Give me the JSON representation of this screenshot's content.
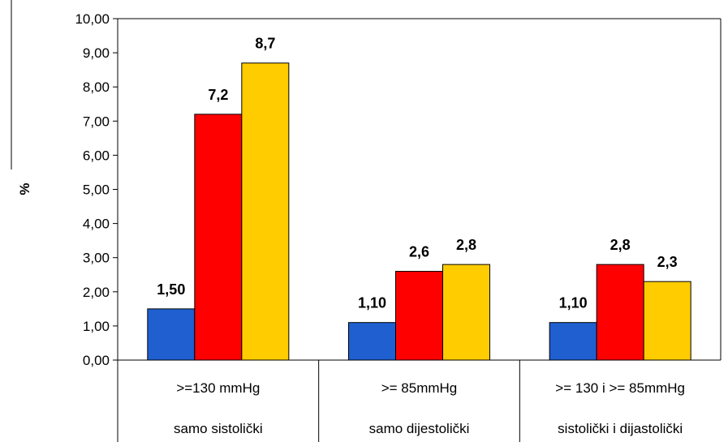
{
  "chart_data": {
    "type": "bar",
    "ylabel": "%",
    "ylim": [
      0,
      10
    ],
    "y_ticks": [
      "0,00",
      "1,00",
      "2,00",
      "3,00",
      "4,00",
      "5,00",
      "6,00",
      "7,00",
      "8,00",
      "9,00",
      "10,00"
    ],
    "categories": [
      {
        "line1": ">=130 mmHg",
        "line2": "samo sistolički"
      },
      {
        "line1": ">= 85mmHg",
        "line2": "samo dijestolički"
      },
      {
        "line1": ">= 130 i >= 85mmHg",
        "line2": "sistolički i dijastolički"
      }
    ],
    "series": [
      {
        "color": "#1f5fd0",
        "values": [
          1.5,
          1.1,
          1.1
        ],
        "labels": [
          "1,50",
          "1,10",
          "1,10"
        ]
      },
      {
        "color": "#ff0000",
        "values": [
          7.2,
          2.6,
          2.8
        ],
        "labels": [
          "7,2",
          "2,6",
          "2,8"
        ]
      },
      {
        "color": "#ffcc00",
        "values": [
          8.7,
          2.8,
          2.3
        ],
        "labels": [
          "8,7",
          "2,8",
          "2,3"
        ]
      }
    ],
    "grid": false,
    "legend": "none"
  }
}
